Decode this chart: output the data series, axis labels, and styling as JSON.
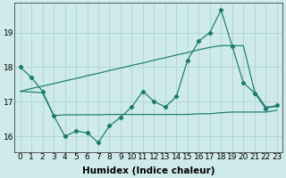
{
  "xlabel": "Humidex (Indice chaleur)",
  "x_values": [
    0,
    1,
    2,
    3,
    4,
    5,
    6,
    7,
    8,
    9,
    10,
    11,
    12,
    13,
    14,
    15,
    16,
    17,
    18,
    19,
    20,
    21,
    22,
    23
  ],
  "main_line": [
    18.0,
    17.7,
    17.3,
    16.6,
    16.0,
    16.15,
    16.1,
    15.82,
    16.3,
    16.55,
    16.85,
    17.3,
    17.0,
    16.85,
    17.15,
    18.2,
    18.75,
    19.0,
    19.65,
    18.6,
    17.55,
    17.25,
    16.8,
    16.9
  ],
  "upper_line": [
    17.3,
    17.38,
    17.45,
    17.52,
    17.6,
    17.67,
    17.75,
    17.82,
    17.9,
    17.97,
    18.05,
    18.12,
    18.2,
    18.27,
    18.35,
    18.42,
    18.5,
    18.57,
    18.62,
    18.62,
    18.62,
    17.3,
    16.85,
    16.85
  ],
  "lower_line": [
    17.3,
    17.28,
    17.26,
    16.6,
    16.62,
    16.62,
    16.62,
    16.62,
    16.63,
    16.63,
    16.63,
    16.63,
    16.63,
    16.63,
    16.63,
    16.63,
    16.65,
    16.65,
    16.68,
    16.7,
    16.7,
    16.7,
    16.7,
    16.75
  ],
  "line_color": "#1a7a6e",
  "bg_color": "#ceeaea",
  "grid_color": "#aad0d0",
  "ylim_min": 15.55,
  "ylim_max": 19.85,
  "yticks": [
    16,
    17,
    18,
    19
  ],
  "tick_fontsize": 6.5,
  "xlabel_fontsize": 7.5
}
